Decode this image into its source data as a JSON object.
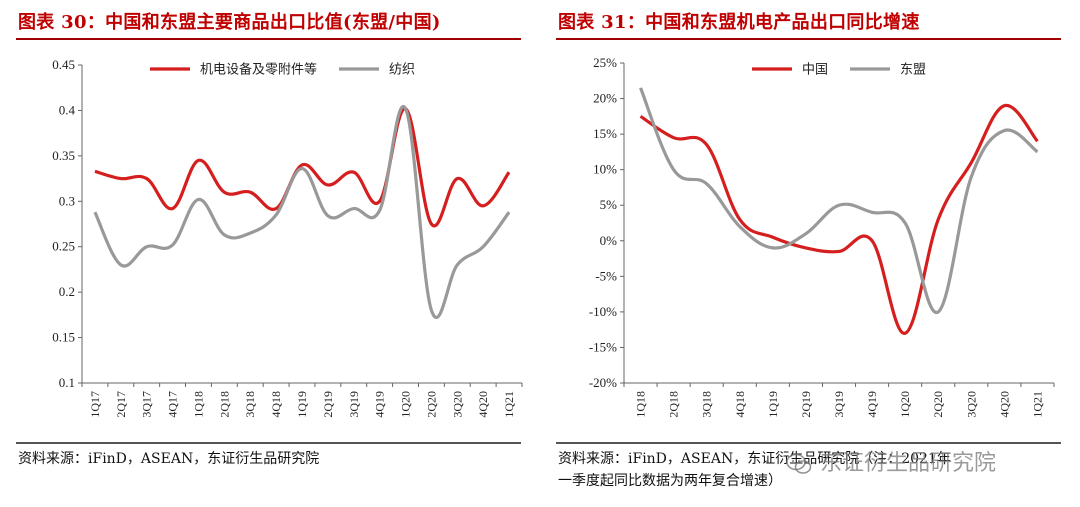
{
  "left": {
    "title": "图表 30：中国和东盟主要商品出口比值(东盟/中国)",
    "source": "资料来源：iFinD，ASEAN，东证衍生品研究院"
  },
  "right": {
    "title": "图表 31：中国和东盟机电产品出口同比增速",
    "source": "资料来源：iFinD，ASEAN，东证衍生品研究院（注：2021年\n一季度起同比数据为两年复合增速）"
  },
  "watermark": "东证衍生品研究院",
  "colors": {
    "red": "#d51f1f",
    "gray": "#999999",
    "title": "#c00000"
  },
  "chart_data": [
    {
      "type": "line",
      "categories": [
        "1Q17",
        "2Q17",
        "3Q17",
        "4Q17",
        "1Q18",
        "2Q18",
        "3Q18",
        "4Q18",
        "1Q19",
        "2Q19",
        "3Q19",
        "4Q19",
        "1Q20",
        "2Q20",
        "3Q20",
        "4Q20",
        "1Q21"
      ],
      "series": [
        {
          "name": "机电设备及零附件等",
          "color": "red",
          "values": [
            0.333,
            0.325,
            0.325,
            0.292,
            0.345,
            0.31,
            0.31,
            0.292,
            0.34,
            0.318,
            0.332,
            0.3,
            0.402,
            0.275,
            0.325,
            0.295,
            0.332
          ]
        },
        {
          "name": "纺织",
          "color": "gray",
          "values": [
            0.288,
            0.23,
            0.25,
            0.252,
            0.302,
            0.263,
            0.265,
            0.285,
            0.336,
            0.284,
            0.292,
            0.29,
            0.402,
            0.18,
            0.23,
            0.25,
            0.288
          ]
        }
      ],
      "yticks": [
        "0.45",
        "0.4",
        "0.35",
        "0.3",
        "0.25",
        "0.2",
        "0.15",
        "0.1"
      ],
      "ylim": [
        0.1,
        0.45
      ],
      "legend": "top"
    },
    {
      "type": "line",
      "categories": [
        "1Q18",
        "2Q18",
        "3Q18",
        "4Q18",
        "1Q19",
        "2Q19",
        "3Q19",
        "4Q19",
        "1Q20",
        "2Q20",
        "3Q20",
        "4Q20",
        "1Q21"
      ],
      "series": [
        {
          "name": "中国",
          "color": "red",
          "values": [
            17.5,
            14.5,
            13.5,
            3,
            0.5,
            -1,
            -1.5,
            0,
            -13,
            3,
            11,
            19,
            14
          ]
        },
        {
          "name": "东盟",
          "color": "gray",
          "values": [
            21.5,
            10,
            8,
            2,
            -1,
            1,
            5,
            4,
            2.5,
            -10,
            9,
            15.5,
            12.5
          ]
        }
      ],
      "yticks": [
        "25%",
        "20%",
        "15%",
        "10%",
        "5%",
        "0%",
        "-5%",
        "-10%",
        "-15%",
        "-20%"
      ],
      "ylim": [
        -20,
        25
      ],
      "legend": "top"
    }
  ]
}
